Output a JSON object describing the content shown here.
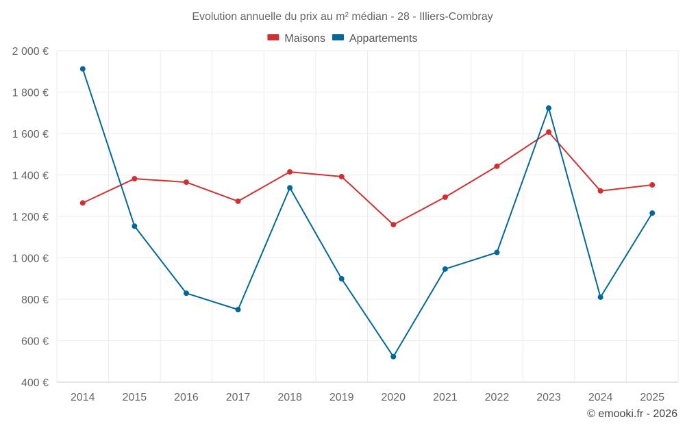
{
  "chart_data": {
    "type": "line",
    "title": "Evolution annuelle du prix au m² médian - 28 - Illiers-Combray",
    "categories": [
      "2014",
      "2015",
      "2016",
      "2017",
      "2018",
      "2019",
      "2020",
      "2021",
      "2022",
      "2023",
      "2024",
      "2025"
    ],
    "series": [
      {
        "name": "Maisons",
        "color": "#d32f2f",
        "values": [
          1265,
          1382,
          1365,
          1273,
          1415,
          1392,
          1160,
          1293,
          1442,
          1607,
          1323,
          1352
        ]
      },
      {
        "name": "Appartements",
        "color": "#01689b",
        "values": [
          1912,
          1153,
          829,
          750,
          1338,
          899,
          523,
          946,
          1026,
          1723,
          810,
          1216
        ]
      }
    ],
    "y_ticks": [
      400,
      600,
      800,
      1000,
      1200,
      1400,
      1600,
      1800,
      2000
    ],
    "y_tick_labels": [
      "400 €",
      "600 €",
      "800 €",
      "1 000 €",
      "1 200 €",
      "1 400 €",
      "1 600 €",
      "1 800 €",
      "2 000 €"
    ],
    "ylim": [
      400,
      2000
    ],
    "grid": true,
    "legend_position": "top-center",
    "xlabel": "",
    "ylabel": ""
  },
  "credit": "© emooki.fr - 2026"
}
